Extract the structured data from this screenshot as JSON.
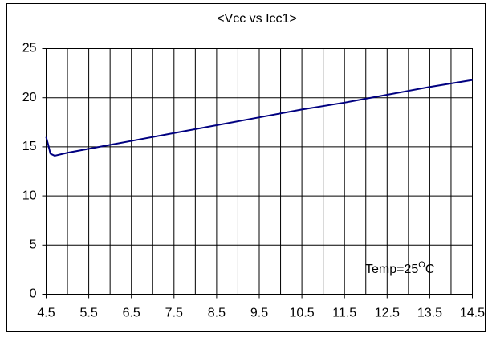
{
  "chart_data": {
    "type": "line",
    "title": "<Vcc vs Icc1>",
    "annotation": {
      "text": "Temp=25",
      "sup": "O",
      "end": "C"
    },
    "x": [
      4.5,
      4.55,
      4.6,
      4.7,
      5,
      5.5,
      6.5,
      7.5,
      8.5,
      9.5,
      10.5,
      11.5,
      12.5,
      13.5,
      14.5
    ],
    "series": [
      {
        "color": "#000080",
        "values": [
          16,
          15.2,
          14.3,
          14.1,
          14.4,
          14.8,
          15.6,
          16.4,
          17.2,
          18.0,
          18.8,
          19.5,
          20.3,
          21.1,
          21.8
        ]
      }
    ],
    "xlim": [
      4.5,
      14.5
    ],
    "xticks": [
      4.5,
      5.5,
      6.5,
      7.5,
      8.5,
      9.5,
      10.5,
      11.5,
      12.5,
      13.5,
      14.5
    ],
    "x_minor_grid": [
      5,
      6,
      7,
      8,
      9,
      10,
      11,
      12,
      13,
      14
    ],
    "ylim": [
      0,
      25
    ],
    "yticks": [
      0,
      5,
      10,
      15,
      20,
      25
    ],
    "grid": true
  }
}
